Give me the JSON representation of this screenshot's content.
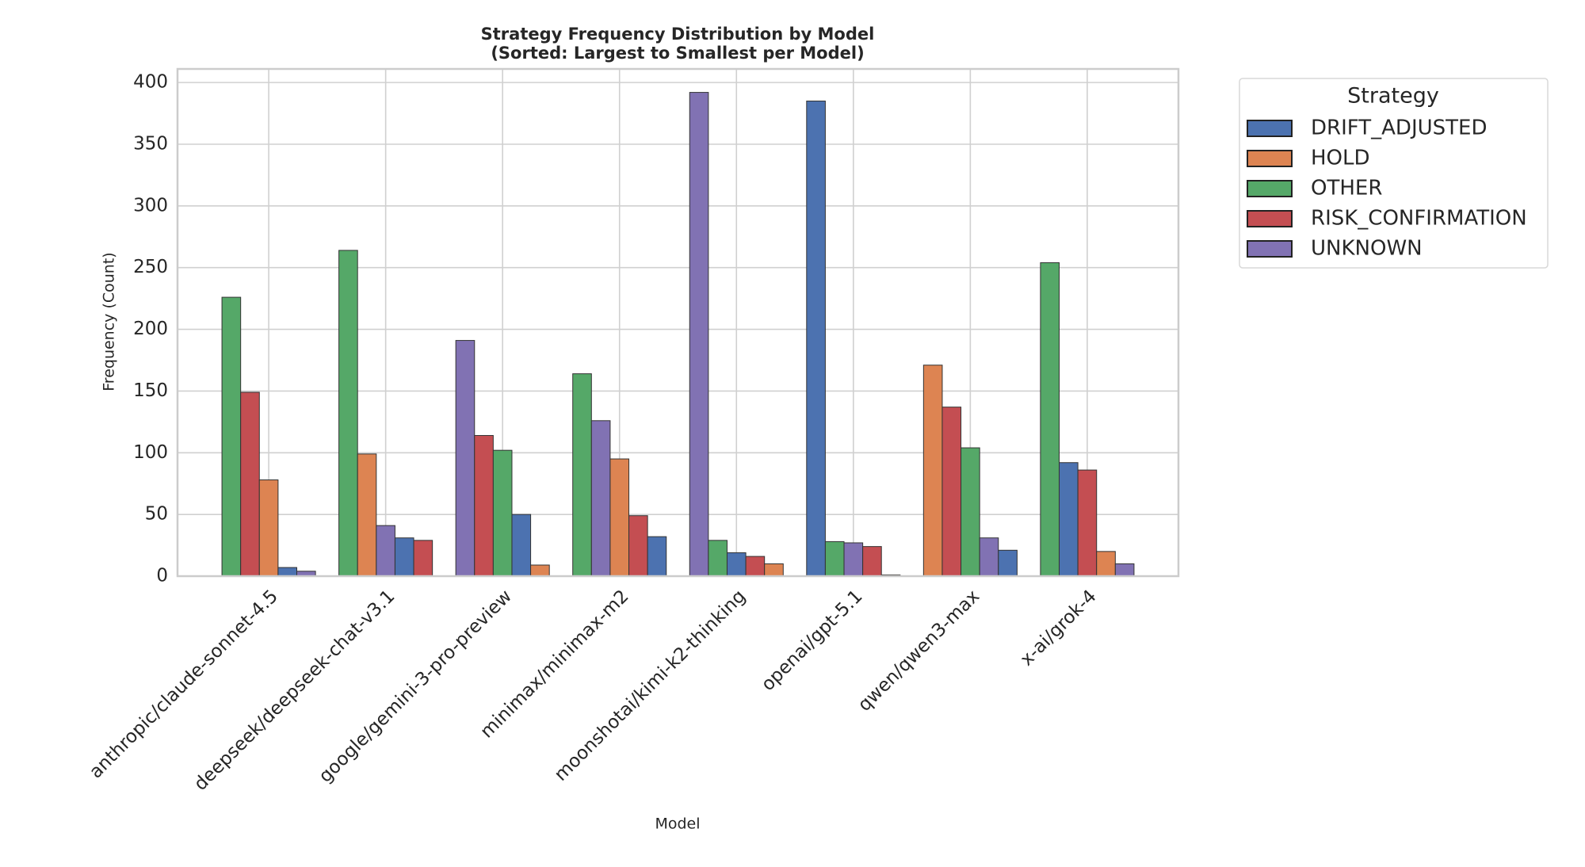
{
  "chart_data": {
    "type": "bar",
    "title": "Strategy Frequency Distribution by Model",
    "subtitle": "(Sorted: Largest to Smallest per Model)",
    "xlabel": "Model",
    "ylabel": "Frequency (Count)",
    "categories": [
      "anthropic/claude-sonnet-4.5",
      "deepseek/deepseek-chat-v3.1",
      "google/gemini-3-pro-preview",
      "minimax/minimax-m2",
      "moonshotai/kimi-k2-thinking",
      "openai/gpt-5.1",
      "qwen/qwen3-max",
      "x-ai/grok-4"
    ],
    "series": [
      {
        "name": "DRIFT_ADJUSTED",
        "color": "#4c72b0",
        "values": [
          7,
          31,
          50,
          32,
          19,
          385,
          21,
          92
        ]
      },
      {
        "name": "HOLD",
        "color": "#dd8452",
        "values": [
          78,
          99,
          9,
          95,
          10,
          1,
          171,
          20
        ]
      },
      {
        "name": "OTHER",
        "color": "#55a868",
        "values": [
          226,
          264,
          102,
          164,
          29,
          28,
          104,
          254
        ]
      },
      {
        "name": "RISK_CONFIRMATION",
        "color": "#c44e52",
        "values": [
          149,
          29,
          114,
          49,
          16,
          24,
          137,
          86
        ]
      },
      {
        "name": "UNKNOWN",
        "color": "#8172b3",
        "values": [
          4,
          41,
          191,
          126,
          392,
          27,
          31,
          10
        ]
      }
    ],
    "ylim": [
      0,
      411
    ],
    "yticks": [
      0,
      50,
      100,
      150,
      200,
      250,
      300,
      350,
      400
    ],
    "grid": true,
    "legend_title": "Strategy",
    "legend_position": "outside-right"
  }
}
